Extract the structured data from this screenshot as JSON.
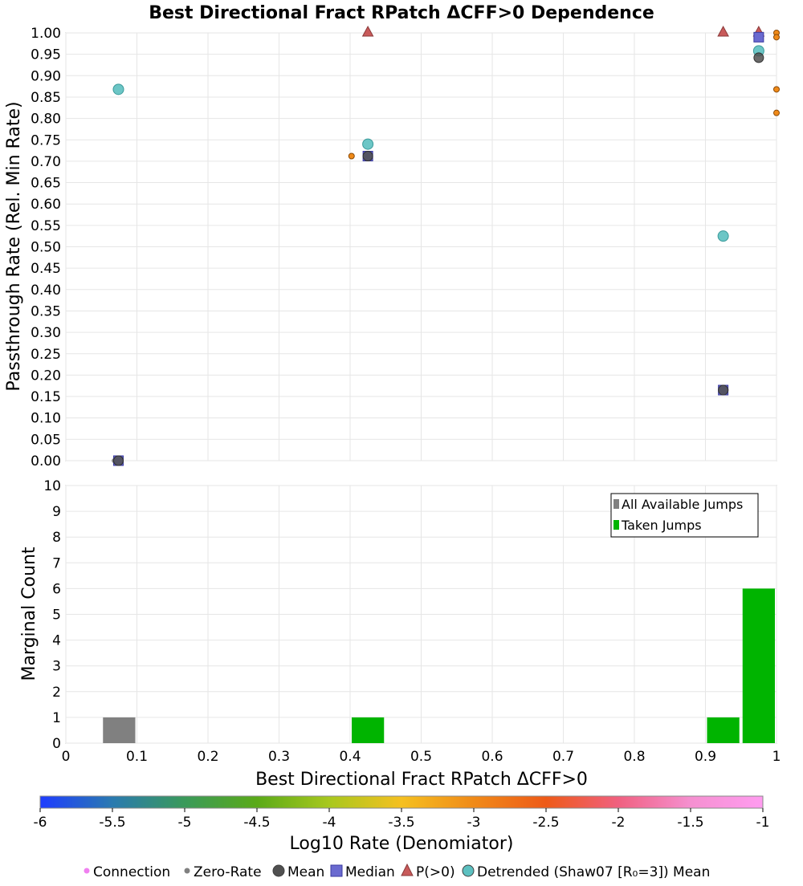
{
  "chart_data": [
    {
      "type": "scatter",
      "title": "Best Directional Fract RPatch ΔCFF>0 Dependence",
      "xlabel": "",
      "ylabel": "Passthrough Rate (Rel. Min Rate)",
      "xlim": [
        0,
        1
      ],
      "ylim": [
        0,
        1
      ],
      "y_ticks": [
        "0.00",
        "0.05",
        "0.10",
        "0.15",
        "0.20",
        "0.25",
        "0.30",
        "0.35",
        "0.40",
        "0.45",
        "0.50",
        "0.55",
        "0.60",
        "0.65",
        "0.70",
        "0.75",
        "0.80",
        "0.85",
        "0.90",
        "0.95",
        "1.00"
      ],
      "grid": true,
      "series": [
        {
          "name": "Connection",
          "color": "#f08a18",
          "points": [
            {
              "x": 0.07,
              "y": 0.0
            },
            {
              "x": 0.402,
              "y": 0.712
            },
            {
              "x": 0.928,
              "y": 0.165
            },
            {
              "x": 1.0,
              "y": 1.0
            },
            {
              "x": 1.0,
              "y": 0.99
            },
            {
              "x": 1.0,
              "y": 0.868
            },
            {
              "x": 1.0,
              "y": 0.813
            }
          ]
        },
        {
          "name": "Zero-Rate",
          "color": "#808080",
          "points": [
            {
              "x": 0.068,
              "y": 0.0
            }
          ]
        },
        {
          "name": "Mean",
          "color": "#505050",
          "points": [
            {
              "x": 0.074,
              "y": 0.0
            },
            {
              "x": 0.425,
              "y": 0.712
            },
            {
              "x": 0.925,
              "y": 0.165
            },
            {
              "x": 0.975,
              "y": 0.942
            }
          ]
        },
        {
          "name": "Median",
          "color": "#6a6ad0",
          "points": [
            {
              "x": 0.074,
              "y": 0.0
            },
            {
              "x": 0.425,
              "y": 0.712
            },
            {
              "x": 0.925,
              "y": 0.165
            },
            {
              "x": 0.975,
              "y": 0.99
            }
          ]
        },
        {
          "name": "P(>0)",
          "color": "#c85a5a",
          "points": [
            {
              "x": 0.425,
              "y": 1.0
            },
            {
              "x": 0.925,
              "y": 1.0
            },
            {
              "x": 0.975,
              "y": 1.0
            }
          ]
        },
        {
          "name": "Detrended (Shaw07 [R₀=3]) Mean",
          "color": "#5cc0c0",
          "points": [
            {
              "x": 0.074,
              "y": 0.868
            },
            {
              "x": 0.425,
              "y": 0.74
            },
            {
              "x": 0.925,
              "y": 0.525
            },
            {
              "x": 0.975,
              "y": 0.958
            }
          ]
        }
      ]
    },
    {
      "type": "bar",
      "xlabel": "Best Directional Fract RPatch ΔCFF>0",
      "ylabel": "Marginal Count",
      "xlim": [
        0,
        1
      ],
      "ylim": [
        0,
        10
      ],
      "x_ticks": [
        "0",
        "0.1",
        "0.2",
        "0.3",
        "0.4",
        "0.5",
        "0.6",
        "0.7",
        "0.8",
        "0.9",
        "1"
      ],
      "y_ticks": [
        "0",
        "1",
        "2",
        "3",
        "4",
        "5",
        "6",
        "7",
        "8",
        "9",
        "10"
      ],
      "grid": true,
      "legend_position": "top-right",
      "series": [
        {
          "name": "All Available Jumps",
          "color": "#808080",
          "bins": [
            {
              "x0": 0.05,
              "x1": 0.1,
              "value": 1
            }
          ]
        },
        {
          "name": "Taken Jumps",
          "color": "#00b400",
          "bins": [
            {
              "x0": 0.4,
              "x1": 0.45,
              "value": 1
            },
            {
              "x0": 0.9,
              "x1": 0.95,
              "value": 1
            },
            {
              "x0": 0.95,
              "x1": 1.0,
              "value": 6
            }
          ]
        }
      ]
    }
  ],
  "colorbar": {
    "label": "Log10 Rate (Denomiator)",
    "min": -6,
    "max": -1,
    "ticks": [
      "-6",
      "-5.5",
      "-5",
      "-4.5",
      "-4",
      "-3.5",
      "-3",
      "-2.5",
      "-2",
      "-1.5",
      "-1"
    ],
    "colors": [
      "#1e3cff",
      "#2a7ab0",
      "#3a9a5a",
      "#5aaa18",
      "#a8c81e",
      "#f5c020",
      "#f08a18",
      "#ee5a18",
      "#f06080",
      "#f590d0",
      "#ff9cf0"
    ]
  },
  "legend": {
    "items": [
      {
        "label": "Connection",
        "marker": "small-dot",
        "color": "#f080f0"
      },
      {
        "label": "Zero-Rate",
        "marker": "small-dot",
        "color": "#808080"
      },
      {
        "label": "Mean",
        "marker": "circle",
        "color": "#505050"
      },
      {
        "label": "Median",
        "marker": "square",
        "color": "#6a6ad0"
      },
      {
        "label": "P(>0)",
        "marker": "triangle",
        "color": "#c85a5a"
      },
      {
        "label": "Detrended (Shaw07 [R₀=3]) Mean",
        "marker": "circle",
        "color": "#5cc0c0"
      }
    ]
  }
}
